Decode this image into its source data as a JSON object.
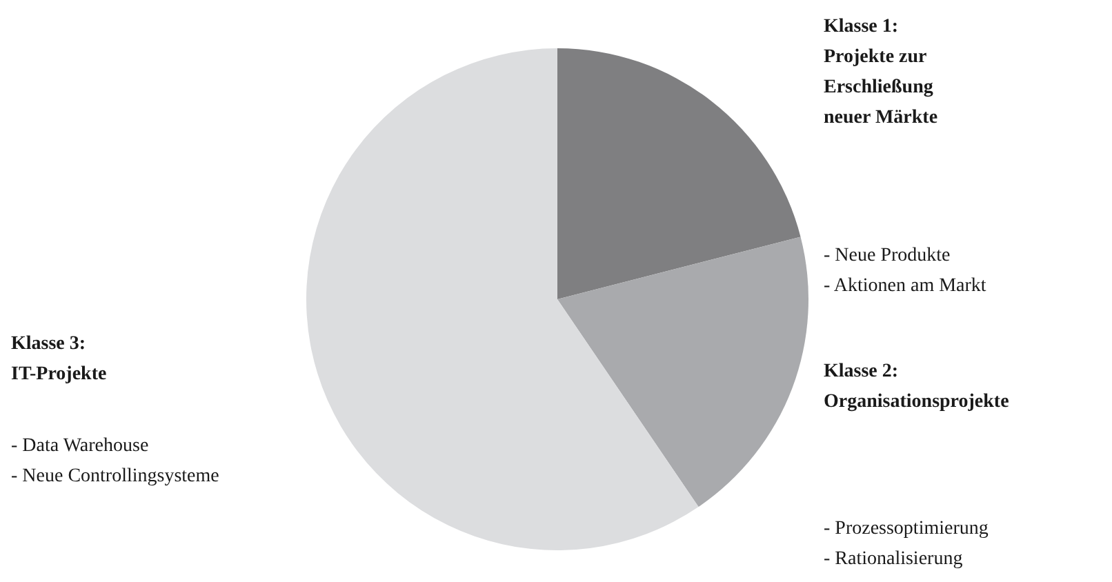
{
  "chart_data": {
    "type": "pie",
    "categories": [
      "Klasse 1:\nProjekte zur\nErschließung\nneuer Märkte",
      "Klasse 2:\nOrganisationsprojekte",
      "Klasse 3:\nIT-Projekte"
    ],
    "values": [
      21,
      19.5,
      59.5
    ],
    "colors": [
      "#7f7f81",
      "#a9aaad",
      "#dcdddf"
    ],
    "annotations": [
      "- Neue Produkte\n- Aktionen am Markt",
      "- Prozessoptimierung\n- Rationalisierung",
      "- Data Warehouse\n- Neue Controllingsysteme"
    ]
  }
}
